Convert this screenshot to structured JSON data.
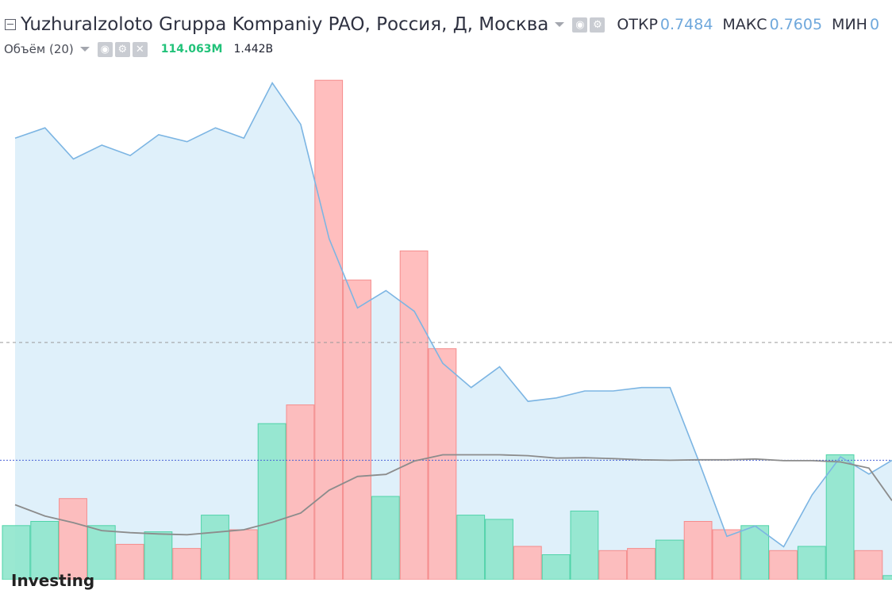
{
  "header": {
    "symbol_title": "Yuzhuralzoloto Gruppa Kompaniy PAO, Россия, Д, Москва",
    "open_label": "ОТКР",
    "open_value": "0.7484",
    "high_label": "МАКС",
    "high_value": "0.7605",
    "low_label": "МИН",
    "low_value": "0"
  },
  "volume_legend": {
    "name": "Объём (20)",
    "volume_value": "114.063M",
    "ma_value": "1.442B"
  },
  "watermark": "Investing",
  "colors": {
    "price_line": "#7cb5e3",
    "price_fill": "#dff0fa",
    "volume_up": "#8fe6cc",
    "volume_up_border": "#4fd3a8",
    "volume_down": "#ffb7b7",
    "volume_down_border": "#f58c8c",
    "volume_ma": "#8c8c8c",
    "last_price_line": "#4a62d6"
  },
  "chart_data": {
    "type": "bar",
    "price_series": [
      0.744,
      0.747,
      0.738,
      0.742,
      0.739,
      0.745,
      0.743,
      0.747,
      0.744,
      0.76,
      0.748,
      0.715,
      0.695,
      0.7,
      0.694,
      0.679,
      0.672,
      0.678,
      0.668,
      0.669,
      0.671,
      0.671,
      0.672,
      0.672,
      0.651,
      0.629,
      0.632,
      0.626,
      0.641,
      0.652,
      0.647,
      0.651
    ],
    "volume_bars": [
      {
        "dir": "up",
        "value": 0.13
      },
      {
        "dir": "up",
        "value": 0.14
      },
      {
        "dir": "down",
        "value": 0.195
      },
      {
        "dir": "up",
        "value": 0.13
      },
      {
        "dir": "down",
        "value": 0.085
      },
      {
        "dir": "up",
        "value": 0.115
      },
      {
        "dir": "down",
        "value": 0.075
      },
      {
        "dir": "up",
        "value": 0.155
      },
      {
        "dir": "down",
        "value": 0.12
      },
      {
        "dir": "up",
        "value": 0.375
      },
      {
        "dir": "down",
        "value": 0.42
      },
      {
        "dir": "down",
        "value": 1.2
      },
      {
        "dir": "down",
        "value": 0.72
      },
      {
        "dir": "up",
        "value": 0.2
      },
      {
        "dir": "down",
        "value": 0.79
      },
      {
        "dir": "down",
        "value": 0.555
      },
      {
        "dir": "up",
        "value": 0.155
      },
      {
        "dir": "up",
        "value": 0.145
      },
      {
        "dir": "down",
        "value": 0.08
      },
      {
        "dir": "up",
        "value": 0.06
      },
      {
        "dir": "up",
        "value": 0.165
      },
      {
        "dir": "down",
        "value": 0.07
      },
      {
        "dir": "down",
        "value": 0.075
      },
      {
        "dir": "up",
        "value": 0.095
      },
      {
        "dir": "down",
        "value": 0.14
      },
      {
        "dir": "down",
        "value": 0.12
      },
      {
        "dir": "up",
        "value": 0.13
      },
      {
        "dir": "down",
        "value": 0.07
      },
      {
        "dir": "up",
        "value": 0.08
      },
      {
        "dir": "up",
        "value": 0.3
      },
      {
        "dir": "down",
        "value": 0.07
      },
      {
        "dir": "up",
        "value": 0.01
      }
    ],
    "volume_ma": [
      0.18,
      0.153,
      0.137,
      0.118,
      0.113,
      0.11,
      0.108,
      0.114,
      0.12,
      0.138,
      0.16,
      0.215,
      0.248,
      0.253,
      0.285,
      0.3,
      0.3,
      0.3,
      0.298,
      0.292,
      0.293,
      0.291,
      0.288,
      0.287,
      0.288,
      0.288,
      0.29,
      0.286,
      0.286,
      0.283,
      0.268,
      0.19
    ],
    "price_ylim": [
      0.6165,
      0.7656
    ],
    "volume_ylim": [
      0,
      1.22
    ],
    "reference_price": 0.685,
    "last_price": 0.651
  }
}
